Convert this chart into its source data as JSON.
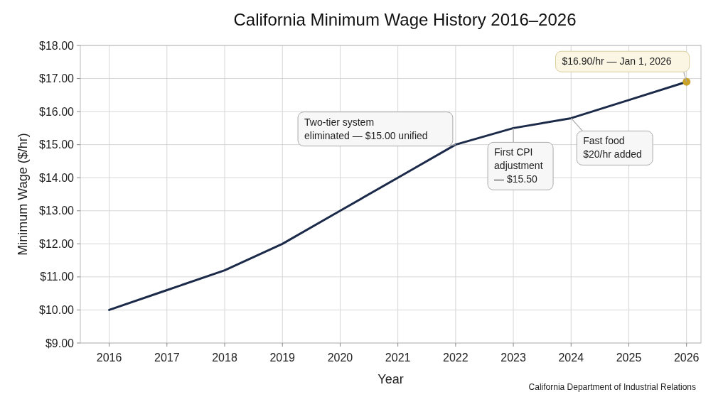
{
  "chart_data": {
    "type": "line",
    "title": "California Minimum Wage History 2016–2026",
    "xlabel": "Year",
    "ylabel": "Minimum Wage ($/hr)",
    "x": [
      2016,
      2017,
      2018,
      2019,
      2020,
      2021,
      2022,
      2023,
      2024,
      2025,
      2026
    ],
    "series": [
      {
        "color": "#1c2a4a",
        "values": [
          10.0,
          10.6,
          11.2,
          12.0,
          13.0,
          14.0,
          15.0,
          15.5,
          15.8,
          16.35,
          16.9
        ],
        "marker": "none"
      },
      {
        "type": "scatter",
        "x": [
          2026
        ],
        "color": "#c9a227",
        "values": [
          16.9
        ],
        "marker": "circle"
      }
    ],
    "xlim": [
      2015.5,
      2026.25
    ],
    "xticks": [
      2016,
      2017,
      2018,
      2019,
      2020,
      2021,
      2022,
      2023,
      2024,
      2025,
      2026
    ],
    "ylim": [
      9,
      18
    ],
    "yticks": [
      {
        "value": 9,
        "label": "$9.00"
      },
      {
        "value": 10,
        "label": "$10.00"
      },
      {
        "value": 11,
        "label": "$11.00"
      },
      {
        "value": 12,
        "label": "$12.00"
      },
      {
        "value": 13,
        "label": "$13.00"
      },
      {
        "value": 14,
        "label": "$14.00"
      },
      {
        "value": 15,
        "label": "$15.00"
      },
      {
        "value": 16,
        "label": "$16.00"
      },
      {
        "value": 17,
        "label": "$17.00"
      },
      {
        "value": 18,
        "label": "$18.00"
      }
    ],
    "grid": true,
    "annotations": [
      {
        "text": "Two-tier system\neliminated — $15.00 unified",
        "x": 2022,
        "y": 15
      },
      {
        "text": "First CPI\nadjustment\n— $15.50",
        "x": 2023,
        "y": 15.5
      },
      {
        "text": "Fast food\n$20/hr added",
        "x": 2024,
        "y": 15.8
      },
      {
        "text": "$16.90/hr — Jan 1, 2026",
        "x": 2026,
        "y": 16.9
      },
      "California Department of Industrial Relations"
    ]
  }
}
